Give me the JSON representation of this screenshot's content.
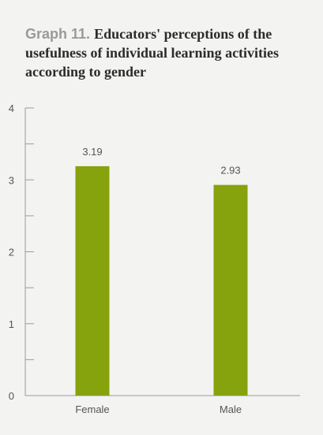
{
  "title": {
    "prefix": "Graph 11.",
    "text": "Educators' perceptions of the usefulness of individual learning activities according to gender"
  },
  "colors": {
    "bar": "#86a20d",
    "axis": "#9b9b9b",
    "text": "#555555",
    "background": "#f3f3f1"
  },
  "chart_data": {
    "type": "bar",
    "categories": [
      "Female",
      "Male"
    ],
    "values": [
      3.19,
      2.93
    ],
    "data_labels": [
      "3.19",
      "2.93"
    ],
    "ylim": [
      0,
      4
    ],
    "yticks": [
      0,
      1,
      2,
      3,
      4
    ],
    "xlabel": "",
    "ylabel": "",
    "grid": false
  }
}
